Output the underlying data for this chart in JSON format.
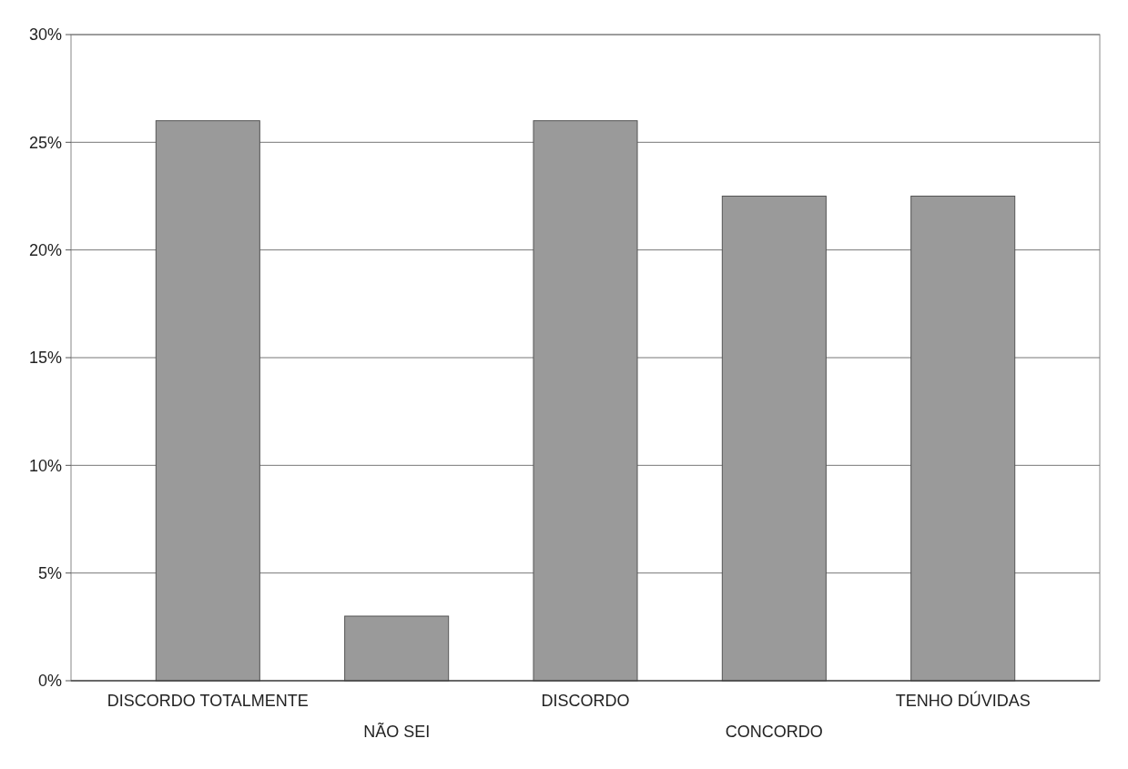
{
  "chart_data": {
    "type": "bar",
    "categories": [
      "DISCORDO TOTALMENTE",
      "NÃO SEI",
      "DISCORDO",
      "CONCORDO",
      "TENHO DÚVIDAS"
    ],
    "values": [
      26,
      3,
      26,
      22.5,
      22.5
    ],
    "color": "#9a9a9a",
    "ylim": [
      0,
      30
    ],
    "yticks": [
      {
        "value": 0,
        "label": "0%"
      },
      {
        "value": 5,
        "label": "5%"
      },
      {
        "value": 10,
        "label": "10%"
      },
      {
        "value": 15,
        "label": "15%"
      },
      {
        "value": 20,
        "label": "20%"
      },
      {
        "value": 25,
        "label": "25%"
      },
      {
        "value": 30,
        "label": "30%"
      }
    ],
    "grid": "y"
  }
}
